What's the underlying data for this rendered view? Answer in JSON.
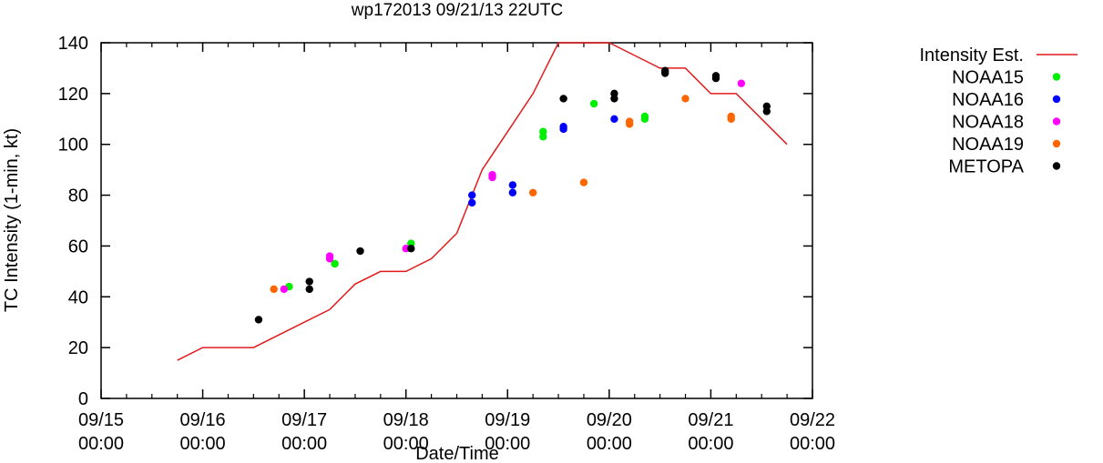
{
  "chart_data": {
    "type": "scatter",
    "title": "wp172013 09/21/13 22UTC",
    "xlabel": "Date/Time",
    "ylabel": "TC Intensity (1-min, kt)",
    "ylim": [
      0,
      140
    ],
    "xlim_days": [
      0,
      7
    ],
    "yticks": [
      0,
      20,
      40,
      60,
      80,
      100,
      120,
      140
    ],
    "xticks": [
      {
        "day": 0,
        "line1": "09/15",
        "line2": "00:00"
      },
      {
        "day": 1,
        "line1": "09/16",
        "line2": "00:00"
      },
      {
        "day": 2,
        "line1": "09/17",
        "line2": "00:00"
      },
      {
        "day": 3,
        "line1": "09/18",
        "line2": "00:00"
      },
      {
        "day": 4,
        "line1": "09/19",
        "line2": "00:00"
      },
      {
        "day": 5,
        "line1": "09/20",
        "line2": "00:00"
      },
      {
        "day": 6,
        "line1": "09/21",
        "line2": "00:00"
      },
      {
        "day": 7,
        "line1": "09/22",
        "line2": "00:00"
      }
    ],
    "line_series": {
      "name": "Intensity Est.",
      "color": "#e31a1c",
      "points": [
        [
          0.75,
          15
        ],
        [
          1.0,
          20
        ],
        [
          1.5,
          20
        ],
        [
          2.0,
          30
        ],
        [
          2.25,
          35
        ],
        [
          2.5,
          45
        ],
        [
          2.75,
          50
        ],
        [
          3.0,
          50
        ],
        [
          3.25,
          55
        ],
        [
          3.5,
          65
        ],
        [
          3.75,
          90
        ],
        [
          4.0,
          105
        ],
        [
          4.25,
          120
        ],
        [
          4.5,
          140
        ],
        [
          5.0,
          140
        ],
        [
          5.25,
          135
        ],
        [
          5.5,
          130
        ],
        [
          5.75,
          130
        ],
        [
          6.0,
          120
        ],
        [
          6.25,
          120
        ],
        [
          6.5,
          110
        ],
        [
          6.75,
          100
        ]
      ]
    },
    "scatter_series": [
      {
        "name": "NOAA15",
        "color": "#00ee00",
        "points": [
          [
            1.85,
            44
          ],
          [
            2.3,
            53
          ],
          [
            3.05,
            61
          ],
          [
            4.35,
            103
          ],
          [
            4.35,
            105
          ],
          [
            4.85,
            116
          ],
          [
            5.35,
            110
          ],
          [
            5.35,
            111
          ]
        ]
      },
      {
        "name": "NOAA16",
        "color": "#0000ff",
        "points": [
          [
            3.65,
            77
          ],
          [
            3.65,
            80
          ],
          [
            4.05,
            81
          ],
          [
            4.05,
            84
          ],
          [
            4.55,
            106
          ],
          [
            4.55,
            107
          ],
          [
            5.05,
            110
          ]
        ]
      },
      {
        "name": "NOAA18",
        "color": "#ff00ff",
        "points": [
          [
            1.8,
            43
          ],
          [
            2.25,
            55
          ],
          [
            2.25,
            56
          ],
          [
            3.0,
            59
          ],
          [
            3.85,
            87
          ],
          [
            3.85,
            88
          ],
          [
            6.3,
            124
          ]
        ]
      },
      {
        "name": "NOAA19",
        "color": "#ff6600",
        "points": [
          [
            1.7,
            43
          ],
          [
            4.25,
            81
          ],
          [
            4.75,
            85
          ],
          [
            5.2,
            108
          ],
          [
            5.2,
            109
          ],
          [
            5.75,
            118
          ],
          [
            6.2,
            110
          ],
          [
            6.2,
            111
          ]
        ]
      },
      {
        "name": "METOPA",
        "color": "#000000",
        "points": [
          [
            1.55,
            31
          ],
          [
            2.05,
            43
          ],
          [
            2.05,
            46
          ],
          [
            2.55,
            58
          ],
          [
            3.05,
            59
          ],
          [
            4.55,
            118
          ],
          [
            5.05,
            118
          ],
          [
            5.05,
            120
          ],
          [
            5.55,
            128
          ],
          [
            5.55,
            129
          ],
          [
            6.05,
            126
          ],
          [
            6.05,
            127
          ],
          [
            6.55,
            113
          ],
          [
            6.55,
            115
          ]
        ]
      }
    ],
    "legend_position": "right"
  }
}
